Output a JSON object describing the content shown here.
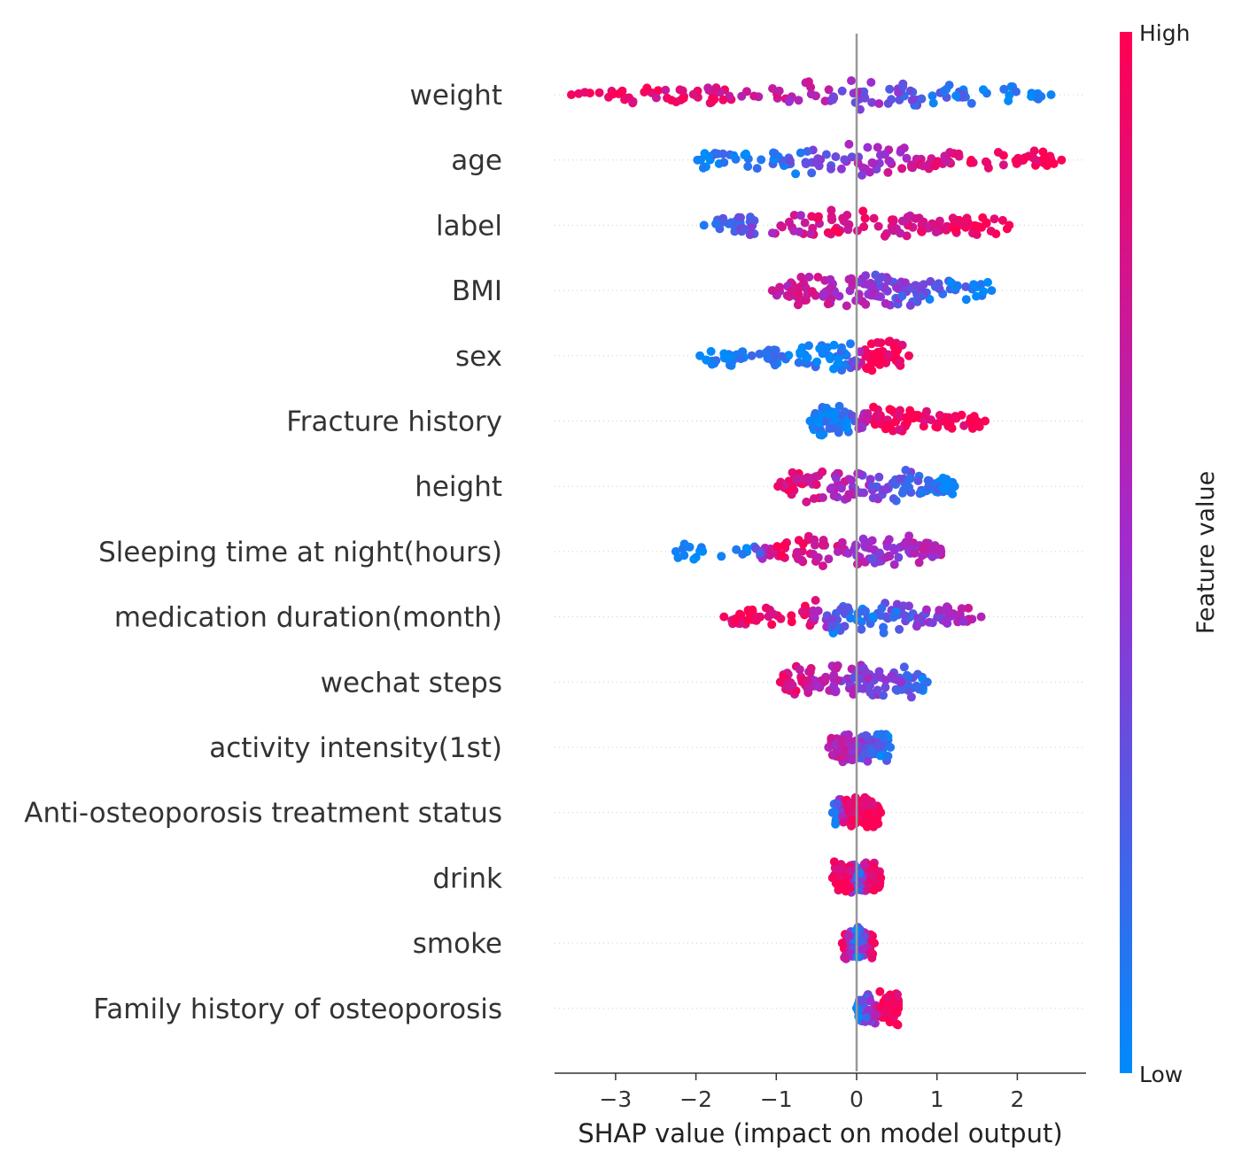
{
  "chart_data": {
    "type": "scatter",
    "subtype": "shap-beeswarm",
    "title": "",
    "xlabel": "SHAP value (impact on model output)",
    "ylabel": "",
    "xlim": [
      -3.75,
      2.85
    ],
    "xticks": [
      -3,
      -2,
      -1,
      0,
      1,
      2
    ],
    "xtick_labels": [
      "−3",
      "−2",
      "−1",
      "0",
      "1",
      "2"
    ],
    "grid": false,
    "zero_line": true,
    "colorbar": {
      "title": "Feature value",
      "high_label": "High",
      "low_label": "Low",
      "low_color": "#008bfb",
      "mid_color": "#9f2ccf",
      "high_color": "#ff0052"
    },
    "features": [
      {
        "name": "weight",
        "min": -3.55,
        "max": 2.42,
        "points": [
          [
            -3.5,
            0.95
          ],
          [
            -3.15,
            0.95
          ],
          [
            -2.9,
            0.95
          ],
          [
            -2.6,
            0.9
          ],
          [
            -2.3,
            0.88
          ],
          [
            -2.0,
            0.85
          ],
          [
            -1.7,
            0.82
          ],
          [
            -1.4,
            0.78
          ],
          [
            -1.1,
            0.72
          ],
          [
            -0.8,
            0.65
          ],
          [
            -0.5,
            0.58
          ],
          [
            -0.2,
            0.5
          ],
          [
            0.1,
            0.45
          ],
          [
            0.4,
            0.35
          ],
          [
            0.7,
            0.25
          ],
          [
            1.0,
            0.2
          ],
          [
            1.3,
            0.15
          ],
          [
            1.6,
            0.1
          ],
          [
            1.9,
            0.08
          ],
          [
            2.1,
            0.05
          ],
          [
            2.4,
            0.03
          ]
        ]
      },
      {
        "name": "age",
        "min": -1.98,
        "max": 2.55,
        "points": [
          [
            -1.95,
            0.05
          ],
          [
            -1.6,
            0.08
          ],
          [
            -1.2,
            0.12
          ],
          [
            -0.8,
            0.2
          ],
          [
            -0.5,
            0.3
          ],
          [
            -0.2,
            0.4
          ],
          [
            0.1,
            0.5
          ],
          [
            0.4,
            0.58
          ],
          [
            0.7,
            0.7
          ],
          [
            1.0,
            0.8
          ],
          [
            1.3,
            0.88
          ],
          [
            1.6,
            0.9
          ],
          [
            1.9,
            0.95
          ],
          [
            2.2,
            0.97
          ],
          [
            2.5,
            0.99
          ]
        ]
      },
      {
        "name": "label",
        "min": -1.9,
        "max": 1.9,
        "points": [
          [
            -1.85,
            0.1
          ],
          [
            -1.6,
            0.15
          ],
          [
            -1.4,
            0.3
          ],
          [
            -1.1,
            0.55
          ],
          [
            -0.8,
            0.65
          ],
          [
            -0.5,
            0.8
          ],
          [
            -0.2,
            0.85
          ],
          [
            0.1,
            0.9
          ],
          [
            0.4,
            0.85
          ],
          [
            0.7,
            0.8
          ],
          [
            1.0,
            0.88
          ],
          [
            1.3,
            0.92
          ],
          [
            1.5,
            0.95
          ],
          [
            1.9,
            0.97
          ]
        ]
      },
      {
        "name": "BMI",
        "min": -1.05,
        "max": 1.68,
        "points": [
          [
            -1.0,
            0.75
          ],
          [
            -0.7,
            0.7
          ],
          [
            -0.4,
            0.65
          ],
          [
            -0.1,
            0.55
          ],
          [
            0.2,
            0.45
          ],
          [
            0.5,
            0.35
          ],
          [
            0.8,
            0.25
          ],
          [
            1.1,
            0.15
          ],
          [
            1.68,
            0.05
          ]
        ]
      },
      {
        "name": "sex",
        "min": -1.95,
        "max": 0.65,
        "points": [
          [
            -1.9,
            0.02
          ],
          [
            -1.5,
            0.03
          ],
          [
            -1.2,
            0.03
          ],
          [
            -0.9,
            0.04
          ],
          [
            -0.6,
            0.04
          ],
          [
            -0.3,
            0.05
          ],
          [
            -0.1,
            0.05
          ],
          [
            0.1,
            0.97
          ],
          [
            0.2,
            0.98
          ],
          [
            0.35,
            0.97
          ],
          [
            0.6,
            0.96
          ]
        ]
      },
      {
        "name": "Fracture history",
        "min": -0.58,
        "max": 1.6,
        "points": [
          [
            -0.55,
            0.03
          ],
          [
            -0.4,
            0.03
          ],
          [
            -0.25,
            0.03
          ],
          [
            -0.1,
            0.04
          ],
          [
            0.2,
            0.96
          ],
          [
            0.5,
            0.97
          ],
          [
            0.8,
            0.97
          ],
          [
            1.1,
            0.98
          ],
          [
            1.3,
            0.98
          ],
          [
            1.6,
            0.99
          ]
        ]
      },
      {
        "name": "height",
        "min": -0.98,
        "max": 1.22,
        "points": [
          [
            -0.95,
            0.92
          ],
          [
            -0.7,
            0.85
          ],
          [
            -0.4,
            0.7
          ],
          [
            -0.1,
            0.55
          ],
          [
            0.2,
            0.4
          ],
          [
            0.5,
            0.3
          ],
          [
            0.8,
            0.2
          ],
          [
            1.0,
            0.12
          ],
          [
            1.2,
            0.05
          ]
        ]
      },
      {
        "name": "Sleeping time at night(hours)",
        "min": -2.25,
        "max": 1.05,
        "points": [
          [
            -2.23,
            0.05
          ],
          [
            -1.3,
            0.08
          ],
          [
            -1.0,
            0.9
          ],
          [
            -0.7,
            0.85
          ],
          [
            -0.4,
            0.75
          ],
          [
            -0.1,
            0.6
          ],
          [
            0.2,
            0.45
          ],
          [
            0.5,
            0.5
          ],
          [
            0.8,
            0.55
          ],
          [
            1.05,
            0.6
          ]
        ]
      },
      {
        "name": "medication duration(month)",
        "min": -1.65,
        "max": 1.55,
        "points": [
          [
            -1.6,
            0.95
          ],
          [
            -1.35,
            0.95
          ],
          [
            -1.2,
            0.95
          ],
          [
            -0.6,
            0.9
          ],
          [
            -0.3,
            0.2
          ],
          [
            0.0,
            0.08
          ],
          [
            0.3,
            0.15
          ],
          [
            0.6,
            0.3
          ],
          [
            0.9,
            0.45
          ],
          [
            1.2,
            0.55
          ],
          [
            1.5,
            0.6
          ]
        ]
      },
      {
        "name": "wechat steps",
        "min": -0.95,
        "max": 0.88,
        "points": [
          [
            -0.92,
            0.92
          ],
          [
            -0.6,
            0.7
          ],
          [
            -0.3,
            0.55
          ],
          [
            0.0,
            0.45
          ],
          [
            0.3,
            0.4
          ],
          [
            0.6,
            0.3
          ],
          [
            0.85,
            0.15
          ]
        ]
      },
      {
        "name": "activity intensity(1st)",
        "min": -0.35,
        "max": 0.42,
        "points": [
          [
            -0.32,
            0.6
          ],
          [
            -0.15,
            0.55
          ],
          [
            0.0,
            0.45
          ],
          [
            0.15,
            0.3
          ],
          [
            0.4,
            0.1
          ]
        ]
      },
      {
        "name": "Anti-osteoporosis treatment status",
        "min": -0.3,
        "max": 0.3,
        "points": [
          [
            -0.28,
            0.1
          ],
          [
            -0.1,
            0.95
          ],
          [
            0.0,
            0.96
          ],
          [
            0.15,
            0.97
          ],
          [
            0.28,
            0.97
          ]
        ]
      },
      {
        "name": "drink",
        "min": -0.3,
        "max": 0.3,
        "points": [
          [
            -0.28,
            0.95
          ],
          [
            -0.1,
            0.95
          ],
          [
            0.0,
            0.02
          ],
          [
            0.15,
            0.96
          ],
          [
            0.3,
            0.96
          ]
        ]
      },
      {
        "name": "smoke",
        "min": -0.18,
        "max": 0.22,
        "points": [
          [
            -0.16,
            0.95
          ],
          [
            0.0,
            0.03
          ],
          [
            0.2,
            0.96
          ]
        ]
      },
      {
        "name": "Family history of osteoporosis",
        "min": 0.0,
        "max": 0.52,
        "points": [
          [
            0.0,
            0.02
          ],
          [
            0.35,
            0.97
          ],
          [
            0.45,
            0.98
          ],
          [
            0.52,
            0.98
          ]
        ]
      }
    ]
  }
}
